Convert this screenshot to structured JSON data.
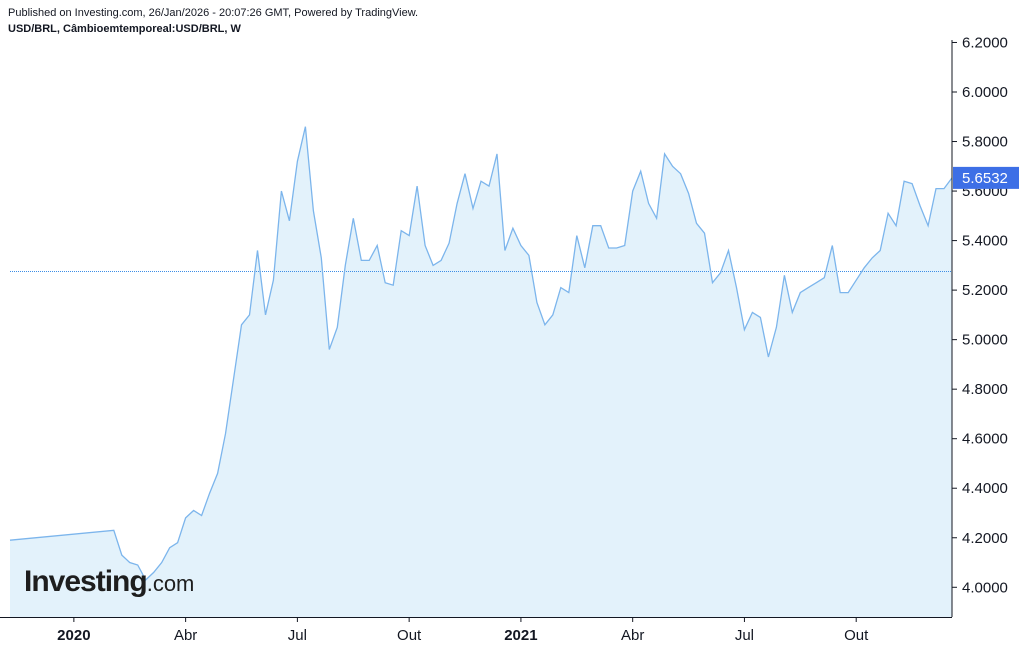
{
  "header": {
    "published": "Published on Investing.com, 26/Jan/2026 - 20:07:26 GMT, Powered by TradingView.",
    "symbol": "USD/BRL, Câmbioemtemporeal:USD/BRL, W"
  },
  "logo": {
    "main": "Investing",
    "suffix": ".com"
  },
  "colors": {
    "line": "#7cb5ec",
    "fill": "#e3f2fb",
    "price_tag": "#3d6fe6",
    "ref_line": "#3d8ee6",
    "axis": "#131722"
  },
  "chart_data": {
    "type": "area",
    "title": "",
    "xlabel": "",
    "ylabel": "",
    "ylim": [
      3.88,
      6.21
    ],
    "xlim": [
      0,
      118
    ],
    "y_ticks": [
      "4.0000",
      "4.2000",
      "4.4000",
      "4.6000",
      "4.8000",
      "5.0000",
      "5.2000",
      "5.4000",
      "5.6000",
      "5.8000",
      "6.0000",
      "6.2000"
    ],
    "y_tick_values": [
      4.0,
      4.2,
      4.4,
      4.6,
      4.8,
      5.0,
      5.2,
      5.4,
      5.6,
      5.8,
      6.0,
      6.2
    ],
    "x_ticks": [
      {
        "label": "2020",
        "week": 8,
        "bold": true
      },
      {
        "label": "Abr",
        "week": 22,
        "bold": false
      },
      {
        "label": "Jul",
        "week": 36,
        "bold": false
      },
      {
        "label": "Out",
        "week": 50,
        "bold": false
      },
      {
        "label": "2021",
        "week": 64,
        "bold": true
      },
      {
        "label": "Abr",
        "week": 78,
        "bold": false
      },
      {
        "label": "Jul",
        "week": 92,
        "bold": false
      },
      {
        "label": "Out",
        "week": 106,
        "bold": false
      }
    ],
    "reference_line": 5.275,
    "last_price": "5.6532",
    "last_value": 5.6532,
    "values": [
      4.19,
      4.23,
      4.13,
      4.1,
      4.09,
      4.03,
      4.06,
      4.1,
      4.16,
      4.18,
      4.28,
      4.31,
      4.29,
      4.38,
      4.46,
      4.62,
      4.84,
      5.06,
      5.1,
      5.36,
      5.1,
      5.24,
      5.6,
      5.48,
      5.72,
      5.86,
      5.52,
      5.33,
      4.96,
      5.05,
      5.3,
      5.49,
      5.32,
      5.32,
      5.38,
      5.23,
      5.22,
      5.44,
      5.42,
      5.62,
      5.38,
      5.3,
      5.32,
      5.39,
      5.55,
      5.67,
      5.53,
      5.64,
      5.62,
      5.75,
      5.36,
      5.45,
      5.38,
      5.34,
      5.15,
      5.06,
      5.1,
      5.21,
      5.19,
      5.42,
      5.29,
      5.46,
      5.46,
      5.37,
      5.37,
      5.38,
      5.6,
      5.68,
      5.55,
      5.49,
      5.75,
      5.7,
      5.67,
      5.59,
      5.47,
      5.43,
      5.23,
      5.27,
      5.36,
      5.21,
      5.04,
      5.11,
      5.09,
      4.93,
      5.05,
      5.26,
      5.11,
      5.19,
      5.21,
      5.23,
      5.25,
      5.38,
      5.19,
      5.19,
      5.24,
      5.29,
      5.33,
      5.36,
      5.51,
      5.46,
      5.64,
      5.63,
      5.54,
      5.46,
      5.61,
      5.61,
      5.6532
    ]
  }
}
